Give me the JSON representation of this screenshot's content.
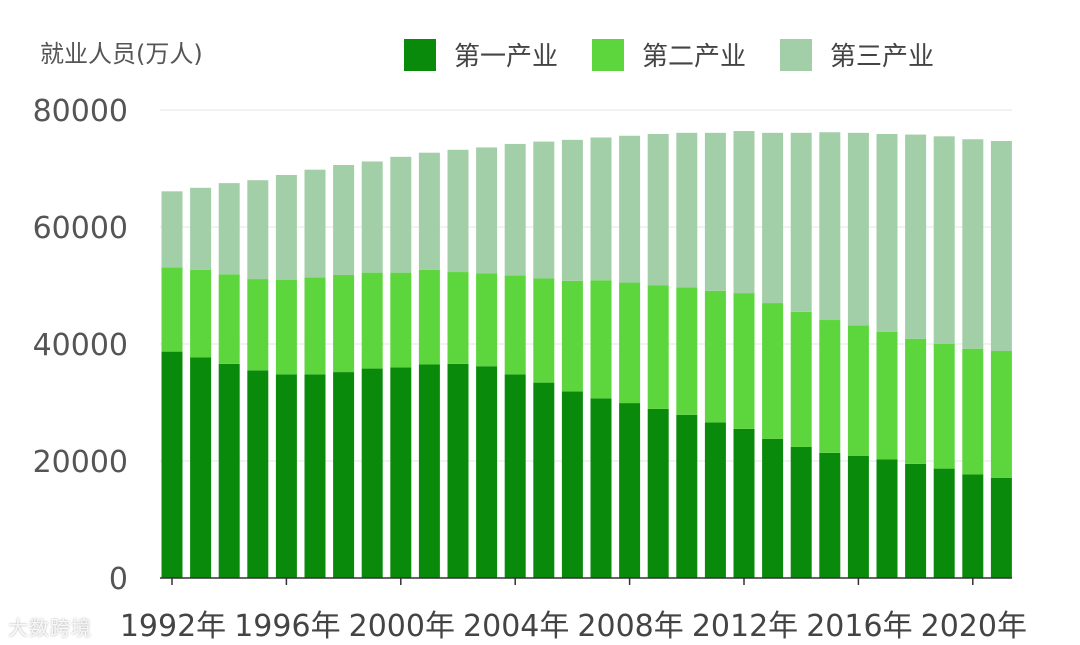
{
  "chart_data": {
    "type": "bar",
    "stacked": true,
    "ylabel": "就业人员(万人)",
    "ylim": [
      0,
      80000
    ],
    "yticks": [
      "0",
      "20000",
      "40000",
      "60000",
      "80000"
    ],
    "xtick_labels": [
      "1992年",
      "1996年",
      "2000年",
      "2004年",
      "2008年",
      "2012年",
      "2016年",
      "2020年"
    ],
    "xtick_years": [
      1992,
      1996,
      2000,
      2004,
      2008,
      2012,
      2016,
      2020
    ],
    "categories": [
      1992,
      1993,
      1994,
      1995,
      1996,
      1997,
      1998,
      1999,
      2000,
      2001,
      2002,
      2003,
      2004,
      2005,
      2006,
      2007,
      2008,
      2009,
      2010,
      2011,
      2012,
      2013,
      2014,
      2015,
      2016,
      2017,
      2018,
      2019,
      2020,
      2021
    ],
    "series": [
      {
        "name": "第一产业",
        "color": "#0a8a0a",
        "values": [
          38700,
          37700,
          36600,
          35500,
          34800,
          34800,
          35200,
          35800,
          36000,
          36500,
          36600,
          36200,
          34800,
          33400,
          31900,
          30700,
          29900,
          28900,
          27900,
          26600,
          25500,
          23800,
          22400,
          21400,
          20900,
          20300,
          19500,
          18700,
          17700,
          17100
        ]
      },
      {
        "name": "第二产业",
        "color": "#5dd63e",
        "values": [
          14400,
          15000,
          15300,
          15600,
          16200,
          16600,
          16600,
          16400,
          16200,
          16200,
          15700,
          15900,
          16900,
          17800,
          18900,
          20200,
          20600,
          21100,
          21800,
          22500,
          23200,
          23200,
          23100,
          22700,
          22300,
          21800,
          21400,
          21300,
          21500,
          21700
        ]
      },
      {
        "name": "第三产业",
        "color": "#a3cfa8",
        "values": [
          13000,
          14000,
          15600,
          16900,
          17900,
          18400,
          18800,
          19000,
          19800,
          20000,
          20900,
          21500,
          22500,
          23400,
          24100,
          24400,
          25100,
          25900,
          26400,
          27000,
          27700,
          29100,
          30600,
          32100,
          32900,
          33800,
          34900,
          35500,
          35800,
          35900
        ]
      }
    ],
    "grid": true,
    "legend_position": "top"
  },
  "watermark": "大数跨境"
}
